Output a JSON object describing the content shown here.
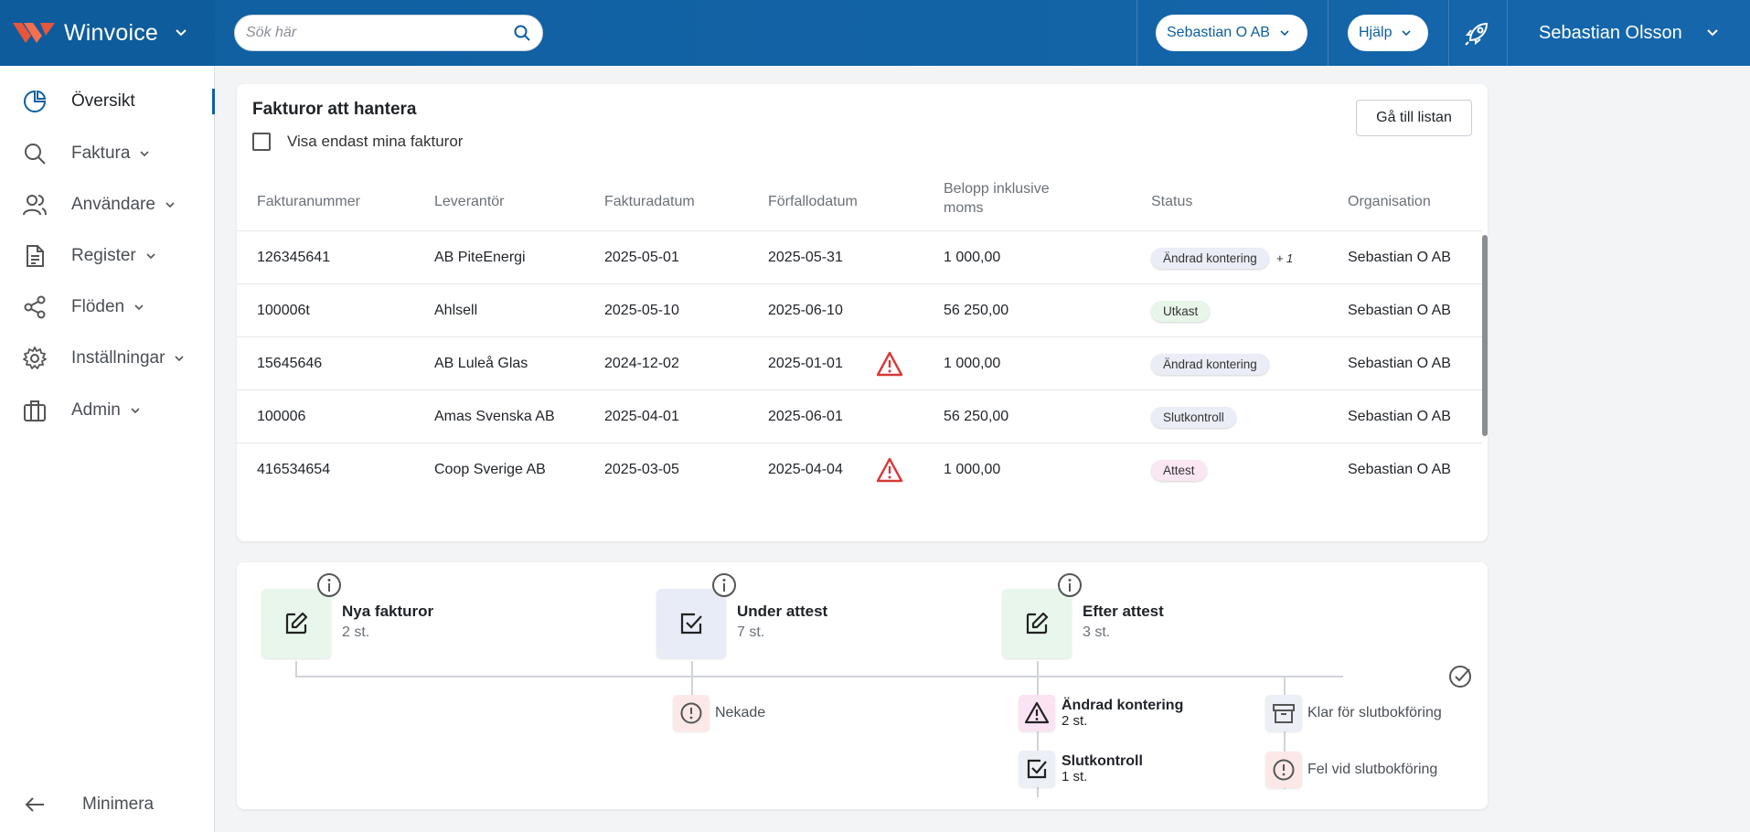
{
  "header": {
    "brand_name": "Winvoice",
    "search_placeholder": "Sök här",
    "company_selector": "Sebastian O AB",
    "help_label": "Hjälp",
    "user_name": "Sebastian Olsson"
  },
  "sidebar": {
    "items": [
      {
        "label": "Översikt",
        "icon": "pie-chart-icon",
        "active": true
      },
      {
        "label": "Faktura",
        "icon": "search-icon"
      },
      {
        "label": "Användare",
        "icon": "users-icon"
      },
      {
        "label": "Register",
        "icon": "document-icon"
      },
      {
        "label": "Flöden",
        "icon": "share-icon"
      },
      {
        "label": "Inställningar",
        "icon": "gear-icon"
      },
      {
        "label": "Admin",
        "icon": "briefcase-icon"
      }
    ],
    "minimize_label": "Minimera"
  },
  "invoices": {
    "title": "Fakturor att hantera",
    "only_mine_label": "Visa endast mina fakturor",
    "go_to_list_label": "Gå till listan",
    "columns": [
      "Fakturanummer",
      "Leverantör",
      "Fakturadatum",
      "Förfallodatum",
      "Belopp inklusive moms",
      "Status",
      "Organisation"
    ],
    "rows": [
      {
        "number": "126345641",
        "supplier": "AB PiteEnergi",
        "invoice_date": "2025-05-01",
        "due_date": "2025-05-31",
        "overdue": false,
        "amount": "1 000,00",
        "status": "Ändrad kontering",
        "status_extra": "+ 1",
        "status_color": "#eaedf6",
        "organisation": "Sebastian O AB"
      },
      {
        "number": "100006t",
        "supplier": "Ahlsell",
        "invoice_date": "2025-05-10",
        "due_date": "2025-06-10",
        "overdue": false,
        "amount": "56 250,00",
        "status": "Utkast",
        "status_extra": "",
        "status_color": "#e8f6ea",
        "organisation": "Sebastian O AB"
      },
      {
        "number": "15645646",
        "supplier": "AB Luleå Glas",
        "invoice_date": "2024-12-02",
        "due_date": "2025-01-01",
        "overdue": true,
        "amount": "1 000,00",
        "status": "Ändrad kontering",
        "status_extra": "",
        "status_color": "#eaedf6",
        "organisation": "Sebastian O AB"
      },
      {
        "number": "100006",
        "supplier": "Amas Svenska AB",
        "invoice_date": "2025-04-01",
        "due_date": "2025-06-01",
        "overdue": false,
        "amount": "56 250,00",
        "status": "Slutkontroll",
        "status_extra": "",
        "status_color": "#eaedf6",
        "organisation": "Sebastian O AB"
      },
      {
        "number": "416534654",
        "supplier": "Coop Sverige AB",
        "invoice_date": "2025-03-05",
        "due_date": "2025-04-04",
        "overdue": true,
        "amount": "1 000,00",
        "status": "Attest",
        "status_extra": "",
        "status_color": "#fbe6f4",
        "organisation": "Sebastian O AB"
      }
    ]
  },
  "flow": {
    "stages": [
      {
        "title": "Nya fakturor",
        "count": "2 st.",
        "icon": "edit-icon",
        "color": "#e9f6ec"
      },
      {
        "title": "Under attest",
        "count": "7 st.",
        "icon": "check-square-icon",
        "color": "#e8ecf7"
      },
      {
        "title": "Efter attest",
        "count": "3 st.",
        "icon": "edit-icon",
        "color": "#e9f6ec"
      }
    ],
    "rejected_label": "Nekade",
    "changed_accounting": {
      "title": "Ändrad kontering",
      "count": "2 st."
    },
    "final_check": {
      "title": "Slutkontroll",
      "count": "1 st."
    },
    "ready_label": "Klar för slutbokföring",
    "error_label": "Fel vid slutbokföring",
    "colors": {
      "warning_tile": "#fbe3f3",
      "error_tile": "#fde8e8",
      "neutral_tile": "#eceff6",
      "danger_icon": "#d93838",
      "accent": "#0f5fa0"
    }
  }
}
